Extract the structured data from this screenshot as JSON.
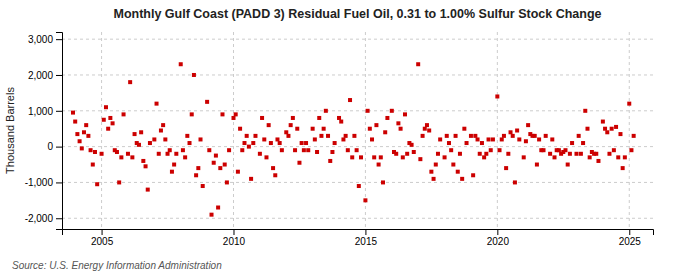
{
  "chart_data": {
    "type": "scatter",
    "title": "Monthly Gulf Coast (PADD 3) Residual Fuel Oil, 0.31 to 1.00% Sulfur Stock Change",
    "y_label": "Thousand Barrels",
    "annotations": [
      "Source: U.S. Energy Information Administration"
    ],
    "color": "#cc0000",
    "marker": "square",
    "grid": true,
    "xlim": [
      2003.5,
      2025.9
    ],
    "xticks": [
      2005,
      2010,
      2015,
      2020,
      2025
    ],
    "ylim": [
      -2300,
      3200
    ],
    "yticks": [
      {
        "value": -2000,
        "label": "-2,000"
      },
      {
        "value": -1000,
        "label": "-1,000"
      },
      0,
      {
        "value": 1000,
        "label": "1,000"
      },
      {
        "value": 2000,
        "label": "2,000"
      },
      {
        "value": 3000,
        "label": "3,000"
      }
    ],
    "x": [
      2003.917,
      2004.0,
      2004.083,
      2004.167,
      2004.25,
      2004.333,
      2004.417,
      2004.5,
      2004.583,
      2004.667,
      2004.75,
      2004.833,
      2005.0,
      2005.083,
      2005.167,
      2005.25,
      2005.333,
      2005.417,
      2005.5,
      2005.583,
      2005.667,
      2005.75,
      2005.833,
      2006.0,
      2006.083,
      2006.167,
      2006.25,
      2006.333,
      2006.417,
      2006.5,
      2006.583,
      2006.667,
      2006.75,
      2006.833,
      2007.0,
      2007.083,
      2007.167,
      2007.25,
      2007.333,
      2007.417,
      2007.5,
      2007.583,
      2007.667,
      2007.75,
      2007.833,
      2008.0,
      2008.083,
      2008.167,
      2008.25,
      2008.333,
      2008.417,
      2008.5,
      2008.583,
      2008.667,
      2008.75,
      2008.833,
      2009.0,
      2009.083,
      2009.167,
      2009.25,
      2009.333,
      2009.417,
      2009.5,
      2009.583,
      2009.667,
      2009.75,
      2009.833,
      2010.0,
      2010.083,
      2010.167,
      2010.25,
      2010.333,
      2010.417,
      2010.5,
      2010.583,
      2010.667,
      2010.75,
      2010.833,
      2011.0,
      2011.083,
      2011.167,
      2011.25,
      2011.333,
      2011.417,
      2011.5,
      2011.583,
      2011.667,
      2011.75,
      2011.833,
      2012.0,
      2012.083,
      2012.167,
      2012.25,
      2012.333,
      2012.417,
      2012.5,
      2012.583,
      2012.667,
      2012.75,
      2012.833,
      2013.0,
      2013.083,
      2013.167,
      2013.25,
      2013.333,
      2013.417,
      2013.5,
      2013.583,
      2013.667,
      2013.75,
      2013.833,
      2014.0,
      2014.083,
      2014.167,
      2014.25,
      2014.333,
      2014.417,
      2014.5,
      2014.583,
      2014.667,
      2014.75,
      2014.833,
      2015.0,
      2015.083,
      2015.167,
      2015.25,
      2015.333,
      2015.417,
      2015.5,
      2015.583,
      2015.667,
      2015.75,
      2015.833,
      2016.0,
      2016.083,
      2016.167,
      2016.25,
      2016.333,
      2016.417,
      2016.5,
      2016.583,
      2016.667,
      2016.75,
      2016.833,
      2017.0,
      2017.083,
      2017.167,
      2017.25,
      2017.333,
      2017.417,
      2017.5,
      2017.583,
      2017.667,
      2017.75,
      2017.833,
      2018.0,
      2018.083,
      2018.167,
      2018.25,
      2018.333,
      2018.417,
      2018.5,
      2018.583,
      2018.667,
      2018.75,
      2018.833,
      2019.0,
      2019.083,
      2019.167,
      2019.25,
      2019.333,
      2019.417,
      2019.5,
      2019.583,
      2019.667,
      2019.75,
      2019.833,
      2020.0,
      2020.083,
      2020.167,
      2020.25,
      2020.333,
      2020.417,
      2020.5,
      2020.583,
      2020.667,
      2020.75,
      2020.833,
      2021.0,
      2021.083,
      2021.167,
      2021.25,
      2021.333,
      2021.417,
      2021.5,
      2021.583,
      2021.667,
      2021.75,
      2021.833,
      2022.0,
      2022.083,
      2022.167,
      2022.25,
      2022.333,
      2022.417,
      2022.5,
      2022.583,
      2022.667,
      2022.75,
      2022.833,
      2023.0,
      2023.083,
      2023.167,
      2023.25,
      2023.333,
      2023.417,
      2023.5,
      2023.583,
      2023.667,
      2023.75,
      2023.833,
      2024.0,
      2024.083,
      2024.167,
      2024.25,
      2024.333,
      2024.417,
      2024.5,
      2024.583,
      2024.667,
      2024.75,
      2024.833,
      2025.0,
      2025.083,
      2025.167
    ],
    "values": [
      950,
      700,
      350,
      150,
      -50,
      400,
      600,
      300,
      -100,
      -500,
      -150,
      -1050,
      -200,
      750,
      1100,
      500,
      800,
      650,
      -100,
      -150,
      -1000,
      -300,
      900,
      -200,
      1800,
      -300,
      350,
      100,
      50,
      400,
      -400,
      -550,
      -1200,
      100,
      200,
      1200,
      -200,
      450,
      600,
      200,
      -200,
      -100,
      -700,
      -500,
      -200,
      2300,
      -100,
      -300,
      300,
      100,
      900,
      2000,
      -800,
      -600,
      200,
      -1100,
      1250,
      -100,
      -1900,
      -450,
      -250,
      -1700,
      -600,
      900,
      -500,
      -1000,
      -100,
      800,
      900,
      -700,
      500,
      -100,
      100,
      300,
      0,
      -900,
      100,
      300,
      -200,
      800,
      200,
      -300,
      600,
      100,
      -600,
      -800,
      200,
      100,
      -100,
      400,
      300,
      600,
      800,
      -100,
      500,
      -450,
      100,
      -100,
      100,
      -100,
      500,
      200,
      -150,
      800,
      300,
      500,
      1000,
      300,
      -400,
      -150,
      100,
      800,
      700,
      200,
      300,
      -100,
      1300,
      -300,
      300,
      -100,
      -1100,
      -300,
      -1500,
      1000,
      500,
      200,
      -300,
      600,
      -500,
      -300,
      -1000,
      400,
      800,
      1000,
      -150,
      -200,
      650,
      500,
      -300,
      900,
      -200,
      100,
      50,
      -150,
      2300,
      -350,
      300,
      500,
      600,
      450,
      -700,
      -900,
      -500,
      -200,
      200,
      -300,
      300,
      100,
      -100,
      -500,
      300,
      -700,
      -200,
      -900,
      500,
      100,
      300,
      -800,
      300,
      200,
      -200,
      100,
      -300,
      -200,
      200,
      -100,
      200,
      1400,
      -100,
      200,
      300,
      -600,
      -200,
      400,
      300,
      -1000,
      450,
      200,
      -300,
      150,
      600,
      350,
      300,
      300,
      -500,
      200,
      -100,
      -100,
      300,
      -200,
      200,
      -300,
      -100,
      -100,
      -200,
      -150,
      -100,
      -500,
      -200,
      100,
      -200,
      300,
      -200,
      100,
      1000,
      500,
      -300,
      -150,
      -200,
      -200,
      -400,
      700,
      500,
      400,
      -200,
      500,
      -100,
      550,
      -300,
      350,
      -600,
      -300,
      1200,
      -100,
      300
    ]
  }
}
